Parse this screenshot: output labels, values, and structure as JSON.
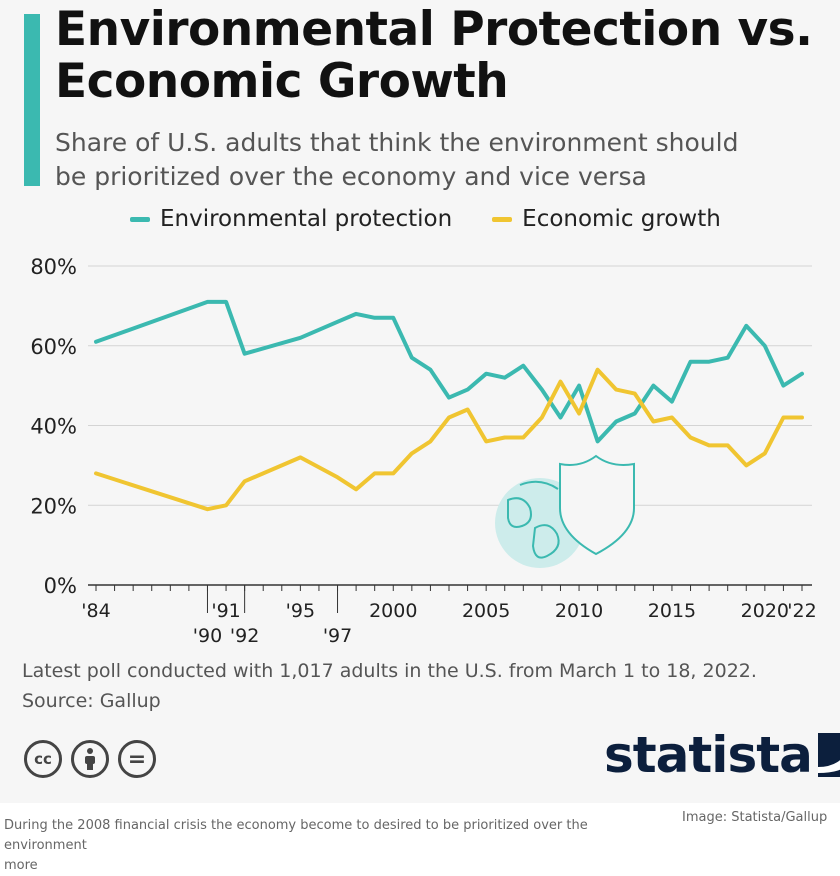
{
  "header": {
    "title_line1": "Environmental Protection vs.",
    "title_line2": "Economic Growth",
    "subtitle_line1": "Share of U.S. adults that think the environment should",
    "subtitle_line2": "be prioritized over the economy and vice versa"
  },
  "legend": {
    "env_label": "Environmental protection",
    "econ_label": "Economic growth"
  },
  "colors": {
    "env": "#3bb9b0",
    "econ": "#f0c531",
    "accent": "#3bb9b0",
    "brand": "#0c1f3d"
  },
  "chart_data": {
    "type": "line",
    "y_ticks": [
      "0%",
      "20%",
      "40%",
      "60%",
      "80%"
    ],
    "ylim": [
      0,
      80
    ],
    "xlim": [
      1984,
      2022
    ],
    "grid": true,
    "legend_position": "top",
    "x_ticks_top": [
      {
        "year": 1984,
        "label": "'84"
      },
      {
        "year": 1991,
        "label": "'91"
      },
      {
        "year": 1995,
        "label": "'95"
      },
      {
        "year": 2000,
        "label": "2000"
      },
      {
        "year": 2005,
        "label": "2005"
      },
      {
        "year": 2010,
        "label": "2010"
      },
      {
        "year": 2015,
        "label": "2015"
      },
      {
        "year": 2020,
        "label": "2020"
      },
      {
        "year": 2022,
        "label": "'22"
      }
    ],
    "x_ticks_bottom": [
      {
        "year": 1990,
        "label": "'90"
      },
      {
        "year": 1992,
        "label": "'92"
      },
      {
        "year": 1997,
        "label": "'97"
      }
    ],
    "x": [
      1984,
      1985,
      1986,
      1987,
      1988,
      1989,
      1990,
      1991,
      1992,
      1993,
      1994,
      1995,
      1996,
      1997,
      1998,
      1999,
      2000,
      2001,
      2002,
      2003,
      2004,
      2005,
      2006,
      2007,
      2008,
      2009,
      2010,
      2011,
      2012,
      2013,
      2014,
      2015,
      2016,
      2017,
      2018,
      2019,
      2020,
      2021,
      2022
    ],
    "series": [
      {
        "name": "Environmental protection",
        "points": [
          [
            1984,
            61
          ],
          [
            1990,
            71
          ],
          [
            1991,
            71
          ],
          [
            1992,
            58
          ],
          [
            1995,
            62
          ],
          [
            1997,
            66
          ],
          [
            1998,
            68
          ],
          [
            1999,
            67
          ],
          [
            2000,
            67
          ],
          [
            2001,
            57
          ],
          [
            2002,
            54
          ],
          [
            2003,
            47
          ],
          [
            2004,
            49
          ],
          [
            2005,
            53
          ],
          [
            2006,
            52
          ],
          [
            2007,
            55
          ],
          [
            2008,
            49
          ],
          [
            2009,
            42
          ],
          [
            2010,
            50
          ],
          [
            2011,
            36
          ],
          [
            2012,
            41
          ],
          [
            2013,
            43
          ],
          [
            2014,
            50
          ],
          [
            2015,
            46
          ],
          [
            2016,
            56
          ],
          [
            2017,
            56
          ],
          [
            2018,
            57
          ],
          [
            2019,
            65
          ],
          [
            2020,
            60
          ],
          [
            2021,
            50
          ],
          [
            2022,
            53
          ]
        ]
      },
      {
        "name": "Economic growth",
        "points": [
          [
            1984,
            28
          ],
          [
            1990,
            19
          ],
          [
            1991,
            20
          ],
          [
            1992,
            26
          ],
          [
            1995,
            32
          ],
          [
            1997,
            27
          ],
          [
            1998,
            24
          ],
          [
            1999,
            28
          ],
          [
            2000,
            28
          ],
          [
            2001,
            33
          ],
          [
            2002,
            36
          ],
          [
            2003,
            42
          ],
          [
            2004,
            44
          ],
          [
            2005,
            36
          ],
          [
            2006,
            37
          ],
          [
            2007,
            37
          ],
          [
            2008,
            42
          ],
          [
            2009,
            51
          ],
          [
            2010,
            43
          ],
          [
            2011,
            54
          ],
          [
            2012,
            49
          ],
          [
            2013,
            48
          ],
          [
            2014,
            41
          ],
          [
            2015,
            42
          ],
          [
            2016,
            37
          ],
          [
            2017,
            35
          ],
          [
            2018,
            35
          ],
          [
            2019,
            30
          ],
          [
            2020,
            33
          ],
          [
            2021,
            42
          ],
          [
            2022,
            42
          ]
        ]
      }
    ]
  },
  "footnote": {
    "line1": "Latest poll conducted with 1,017 adults in the U.S. from March 1 to 18, 2022.",
    "line2": "Source: Gallup"
  },
  "license_icons": [
    {
      "icon": "creative-commons-icon",
      "text": "cc"
    },
    {
      "icon": "attribution-person-icon",
      "text": ""
    },
    {
      "icon": "no-derivatives-icon",
      "text": "="
    }
  ],
  "brand": {
    "name": "statista"
  },
  "caption": {
    "text": "During the 2008 financial crisis the economy become to desired to be prioritized over the environment",
    "more": "more",
    "credit": "Image: Statista/Gallup"
  }
}
